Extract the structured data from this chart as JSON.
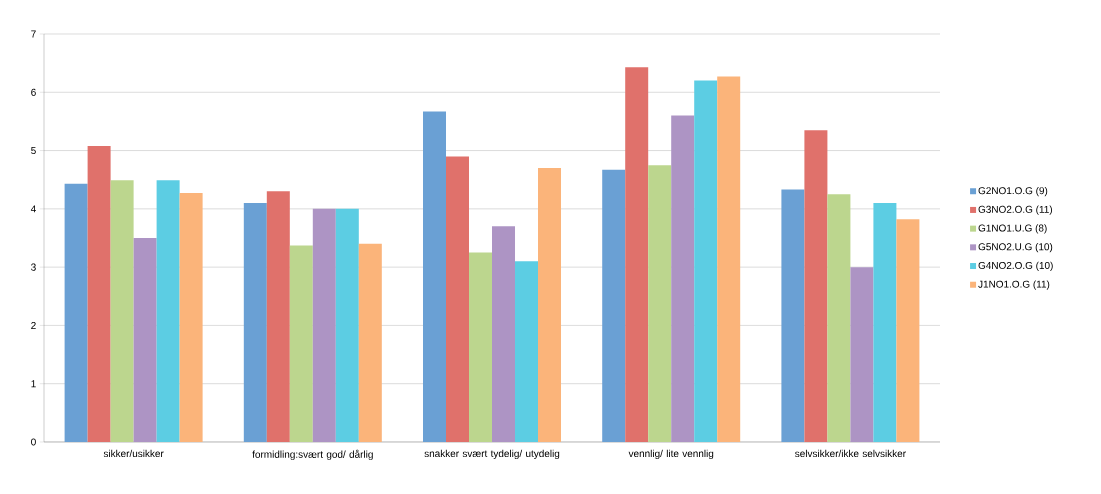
{
  "chart_data": {
    "type": "bar",
    "categories": [
      "sikker/usikker",
      "formidling:svært god/ dårlig",
      "snakker svært tydelig/ utydelig",
      "vennlig/ lite vennlig",
      "selvsikker/ikke selvsikker"
    ],
    "series": [
      {
        "name": "G2NO1.O.G (9)",
        "color": "#6aa0d4",
        "values": [
          4.43,
          4.1,
          5.67,
          4.67,
          4.33
        ]
      },
      {
        "name": "G3NO2.O.G (11)",
        "color": "#e0716b",
        "values": [
          5.08,
          4.3,
          4.9,
          6.43,
          5.35
        ]
      },
      {
        "name": "G1NO1.U.G (8)",
        "color": "#bcd68e",
        "values": [
          4.49,
          3.37,
          3.25,
          4.75,
          4.25
        ]
      },
      {
        "name": "G5NO2.U.G (10)",
        "color": "#ad94c4",
        "values": [
          3.5,
          4.0,
          3.7,
          5.6,
          3.0
        ]
      },
      {
        "name": "G4NO2.O.G (10)",
        "color": "#5ccde3",
        "values": [
          4.49,
          4.0,
          3.1,
          6.2,
          4.1
        ]
      },
      {
        "name": "J1NO1.O.G (11)",
        "color": "#fbb47a",
        "values": [
          4.27,
          3.4,
          4.7,
          6.27,
          3.82
        ]
      }
    ],
    "ylim": [
      0,
      7
    ],
    "yticks": [
      0,
      1,
      2,
      3,
      4,
      5,
      6,
      7
    ],
    "grid": "y",
    "legend": "right"
  }
}
